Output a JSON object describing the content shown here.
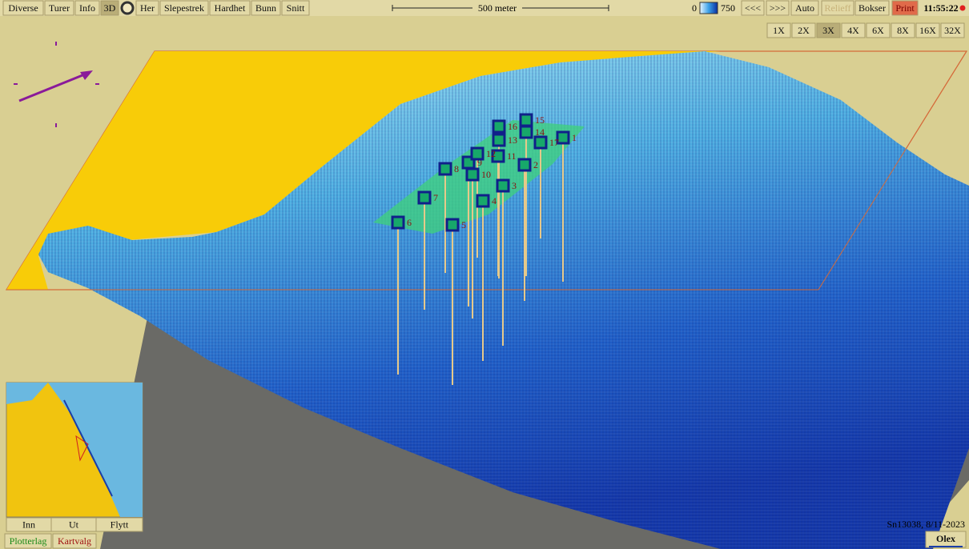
{
  "toolbar": {
    "left": [
      "Diverse",
      "Turer",
      "Info",
      "3D",
      "Her",
      "Slepestrek",
      "Hardhet",
      "Bunn",
      "Snitt"
    ],
    "scale": "500 meter",
    "depth_min": "0",
    "depth_max": "750",
    "right": [
      "<<<",
      ">>>",
      "Auto",
      "Relieff",
      "Bokser",
      "Print"
    ],
    "clock": "11:55:22"
  },
  "zoom": [
    "1X",
    "2X",
    "3X",
    "4X",
    "6X",
    "8X",
    "16X",
    "32X"
  ],
  "markers": [
    "1",
    "2",
    "3",
    "4",
    "5",
    "6",
    "7",
    "8",
    "9",
    "10",
    "11",
    "12",
    "13",
    "14",
    "15",
    "16",
    "17"
  ],
  "inset": {
    "buttons": [
      "Inn",
      "Ut",
      "Flytt"
    ]
  },
  "tabs": [
    "Plotterlag",
    "Kartvalg"
  ],
  "footer": {
    "serial": "Sn13038, 8/11-2023",
    "brand": "Olex"
  }
}
